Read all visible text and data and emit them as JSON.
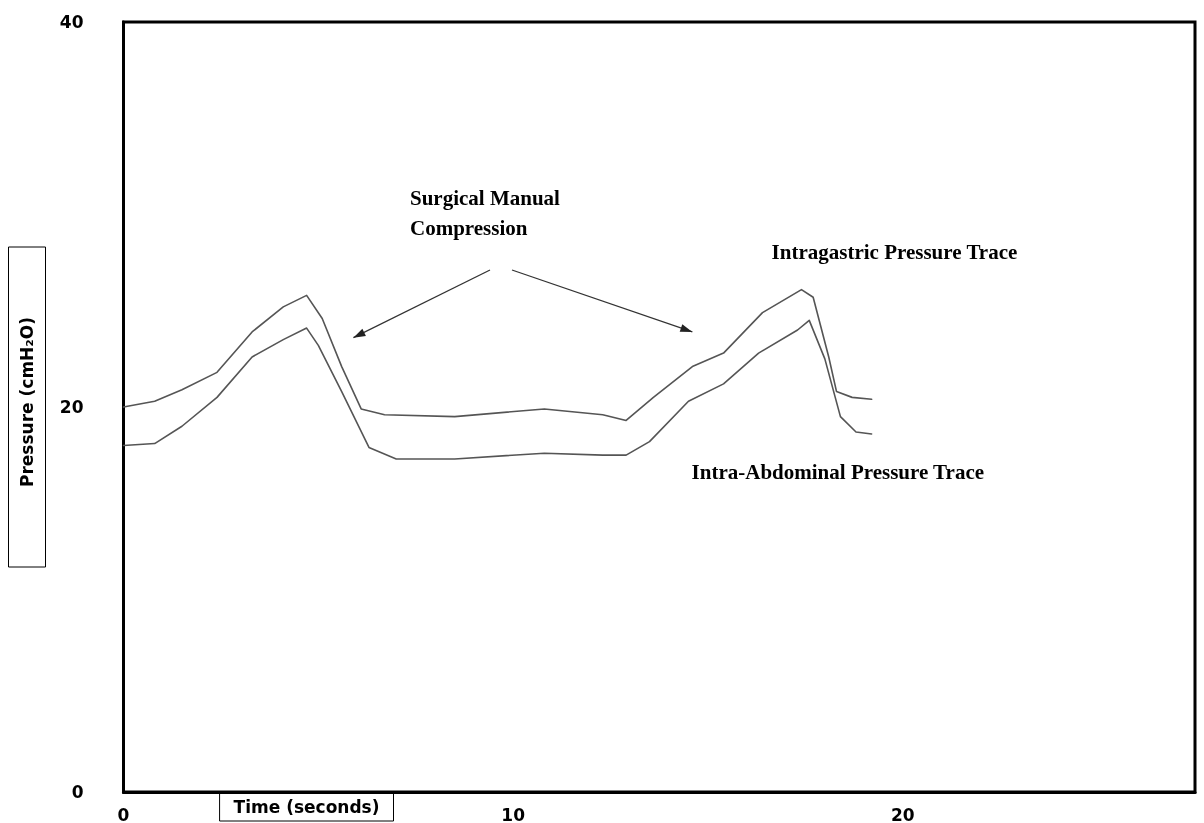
{
  "chart_data": {
    "type": "line",
    "xlabel": "Time (seconds)",
    "ylabel": "Pressure (cmH₂O)",
    "annotations": [
      "Surgical Manual Compression"
    ],
    "xlim": [
      0,
      27.5
    ],
    "xticks": [
      0,
      10,
      20
    ],
    "ylim": [
      0,
      40
    ],
    "yticks": [
      0,
      20,
      40
    ],
    "grid": false,
    "legend": false,
    "marker": "none",
    "line_style": "solid",
    "series": [
      {
        "name": "Intragastric Pressure Trace",
        "color": "#555555",
        "x": [
          0,
          0.8,
          1.5,
          2.4,
          3.3,
          4.1,
          4.7,
          5.1,
          5.6,
          6.1,
          6.7,
          8.5,
          10.8,
          12.3,
          12.9,
          13.6,
          14.6,
          15.4,
          16.4,
          17.4,
          17.7,
          18.1,
          18.3,
          18.7,
          19.2
        ],
        "values": [
          20.0,
          20.3,
          20.9,
          21.8,
          23.9,
          25.2,
          25.8,
          24.6,
          22.1,
          19.9,
          19.6,
          19.5,
          19.9,
          19.6,
          19.3,
          20.5,
          22.1,
          22.8,
          24.9,
          26.1,
          25.7,
          22.6,
          20.8,
          20.5,
          20.4
        ]
      },
      {
        "name": "Intra-Abdominal Pressure Trace",
        "color": "#555555",
        "x": [
          0,
          0.8,
          1.5,
          2.4,
          3.3,
          4.1,
          4.7,
          5.0,
          5.6,
          6.3,
          7.0,
          8.5,
          10.8,
          12.3,
          12.9,
          13.5,
          14.5,
          15.4,
          16.3,
          17.3,
          17.6,
          18.0,
          18.4,
          18.8,
          19.2
        ],
        "values": [
          18.0,
          18.1,
          19.0,
          20.5,
          22.6,
          23.5,
          24.1,
          23.2,
          20.8,
          17.9,
          17.3,
          17.3,
          17.6,
          17.5,
          17.5,
          18.2,
          20.3,
          21.2,
          22.8,
          24.0,
          24.5,
          22.5,
          19.5,
          18.7,
          18.6
        ]
      }
    ]
  }
}
